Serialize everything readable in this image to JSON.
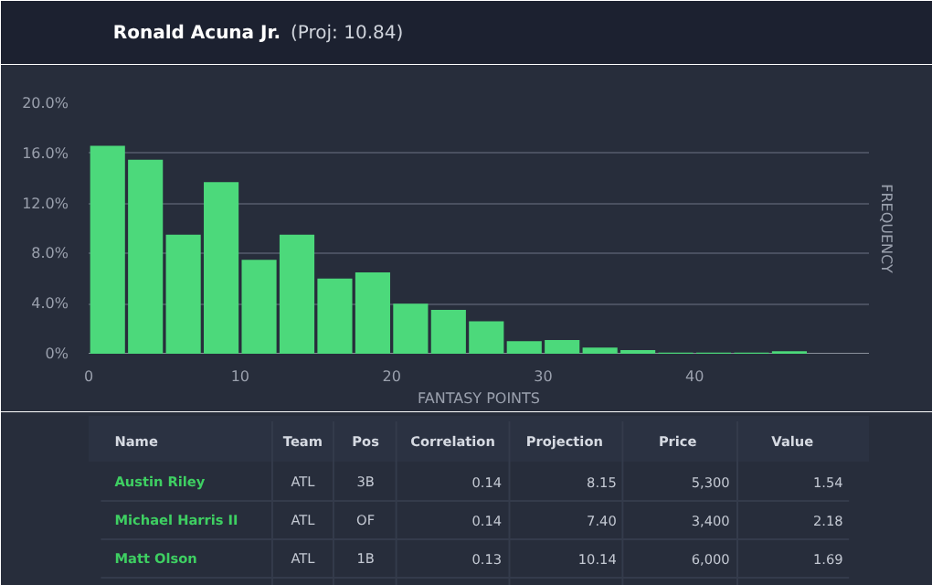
{
  "chart_data": [
    {
      "type": "histogram",
      "title": "Ronald Acuna Jr.",
      "subtitle": "(Proj: 10.84)",
      "xlabel": "FANTASY POINTS",
      "ylabel": "FREQUENCY",
      "bins": [
        0,
        2.5,
        5,
        7.5,
        10,
        12.5,
        15,
        17.5,
        20,
        22.5,
        25,
        27.5,
        30,
        32.5,
        35,
        37.5,
        40,
        42.5,
        45,
        47.5,
        50
      ],
      "values": [
        16.6,
        15.5,
        9.5,
        13.7,
        7.5,
        9.5,
        6.0,
        6.5,
        4.0,
        3.5,
        2.6,
        1.0,
        1.1,
        0.5,
        0.3,
        0.1,
        0.1,
        0.1,
        0.2,
        0
      ],
      "color": "#4cd97b",
      "xlim": [
        0,
        51.5
      ],
      "xticks": [
        0,
        10,
        20,
        30,
        40
      ],
      "ylim": [
        0,
        20
      ],
      "yticks": [
        {
          "value": 0,
          "label": "0%"
        },
        {
          "value": 4,
          "label": "4.0%"
        },
        {
          "value": 8,
          "label": "8.0%"
        },
        {
          "value": 12,
          "label": "12.0%"
        },
        {
          "value": 16,
          "label": "16.0%"
        },
        {
          "value": 20,
          "label": "20.0%"
        }
      ],
      "grid": "y"
    },
    {
      "type": "other",
      "categories": [
        "Name",
        "Team",
        "Pos",
        "Correlation",
        "Projection",
        "Price",
        "Value"
      ],
      "cell_labels": [
        [
          "Austin Riley",
          "ATL",
          "3B",
          "0.14",
          "8.15",
          "5,300",
          "1.54"
        ],
        [
          "Michael Harris II",
          "ATL",
          "OF",
          "0.14",
          "7.40",
          "3,400",
          "2.18"
        ],
        [
          "Matt Olson",
          "ATL",
          "1B",
          "0.13",
          "10.14",
          "6,000",
          "1.69"
        ]
      ],
      "color": "#3ecf62"
    }
  ]
}
